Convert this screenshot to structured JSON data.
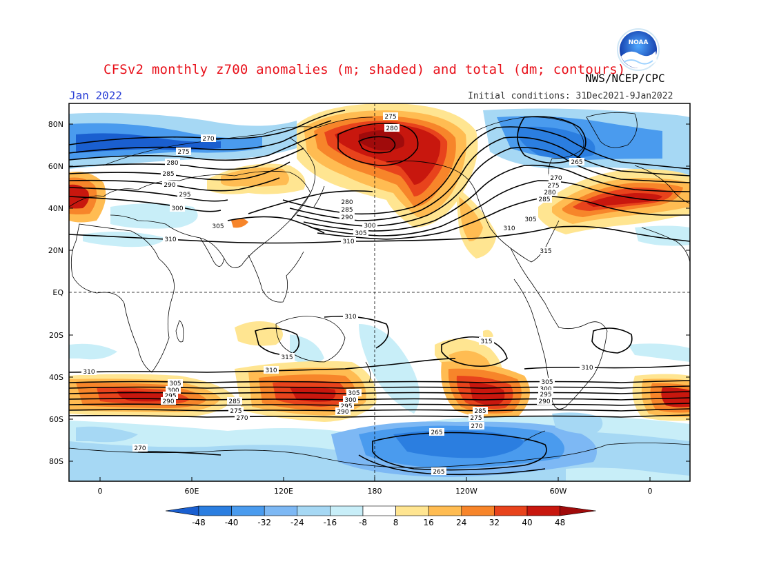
{
  "header": {
    "title": "CFSv2 monthly z700 anomalies (m; shaded) and total (dm; contours)",
    "agency": "NWS/NCEP/CPC",
    "month": "Jan 2022",
    "initial_conditions": "Initial conditions: 31Dec2021-9Jan2022",
    "logo_text": "NOAA"
  },
  "axes": {
    "lat_labels": [
      "80N",
      "60N",
      "40N",
      "20N",
      "EQ",
      "20S",
      "40S",
      "60S",
      "80S"
    ],
    "lon_labels": [
      "0",
      "60E",
      "120E",
      "180",
      "120W",
      "60W",
      "0"
    ]
  },
  "colorbar": {
    "labels": [
      "-48",
      "-40",
      "-32",
      "-24",
      "-16",
      "-8",
      "8",
      "16",
      "24",
      "32",
      "40",
      "48"
    ],
    "colors": [
      "#1a5fd0",
      "#2b7ee0",
      "#4a9bee",
      "#7db8f4",
      "#a6d8f4",
      "#c8eef8",
      "#ffffff",
      "#ffe591",
      "#ffbc52",
      "#f7852a",
      "#e8431c",
      "#c8170e",
      "#a00b0b"
    ]
  },
  "contour_labels": {
    "nh": [
      "270",
      "275",
      "280",
      "285",
      "290",
      "295",
      "300",
      "305",
      "310",
      "265",
      "315"
    ],
    "sh": [
      "310",
      "315",
      "305",
      "300",
      "295",
      "290",
      "285",
      "275",
      "270",
      "265"
    ]
  }
}
